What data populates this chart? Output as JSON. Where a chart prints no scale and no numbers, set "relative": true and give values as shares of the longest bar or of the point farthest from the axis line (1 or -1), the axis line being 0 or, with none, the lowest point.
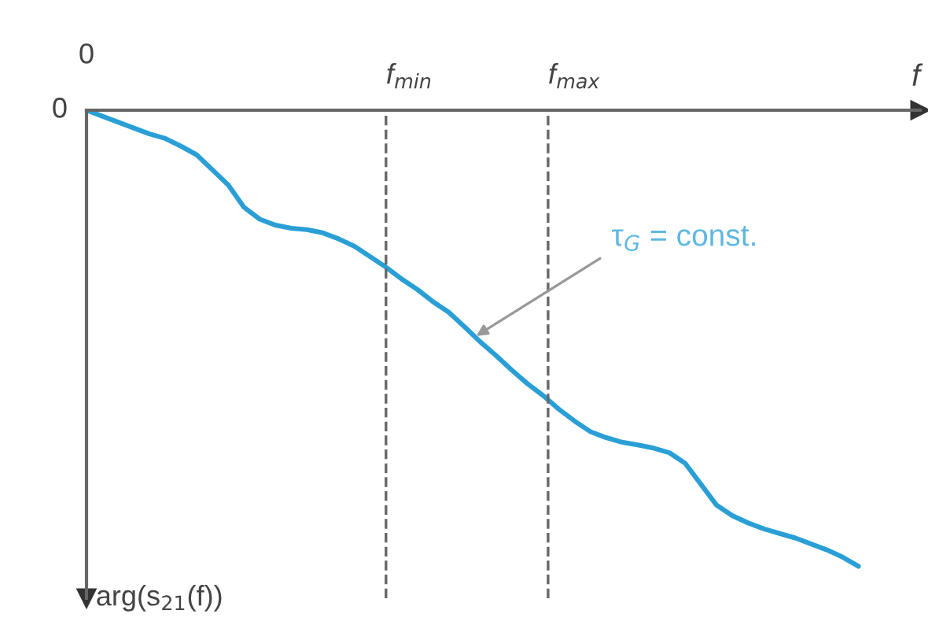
{
  "chart_data": {
    "type": "line",
    "relative": true,
    "xlabel": "f",
    "categories": [
      null,
      null,
      null,
      null,
      null,
      null,
      null,
      null,
      null,
      null,
      null,
      null,
      null,
      null,
      null,
      null,
      null,
      null,
      null,
      null,
      null,
      null,
      null,
      null,
      null,
      null,
      null,
      null,
      null,
      null,
      null,
      null,
      null,
      null,
      null,
      null,
      null,
      null,
      null,
      null,
      null,
      null,
      null,
      null,
      null,
      null,
      null,
      null,
      null,
      null
    ],
    "series": [
      {
        "color": "#2a9fd6",
        "values": [
          0,
          -0.013,
          -0.026,
          -0.039,
          -0.052,
          -0.062,
          -0.079,
          -0.098,
          -0.131,
          -0.164,
          -0.213,
          -0.239,
          -0.252,
          -0.259,
          -0.262,
          -0.269,
          -0.282,
          -0.298,
          -0.321,
          -0.344,
          -0.37,
          -0.393,
          -0.42,
          -0.443,
          -0.475,
          -0.508,
          -0.538,
          -0.57,
          -0.6,
          -0.626,
          -0.656,
          -0.682,
          -0.705,
          -0.718,
          -0.728,
          -0.734,
          -0.741,
          -0.751,
          -0.774,
          -0.82,
          -0.866,
          -0.889,
          -0.905,
          -0.918,
          -0.928,
          -0.938,
          -0.951,
          -0.964,
          -0.98,
          -1
        ]
      }
    ],
    "annotations": [
      "0",
      "0",
      "f$_{min}$",
      "f$_{max}$",
      "τ$_{G}$ = const.",
      "arg(s$_{21}$(f))"
    ]
  }
}
